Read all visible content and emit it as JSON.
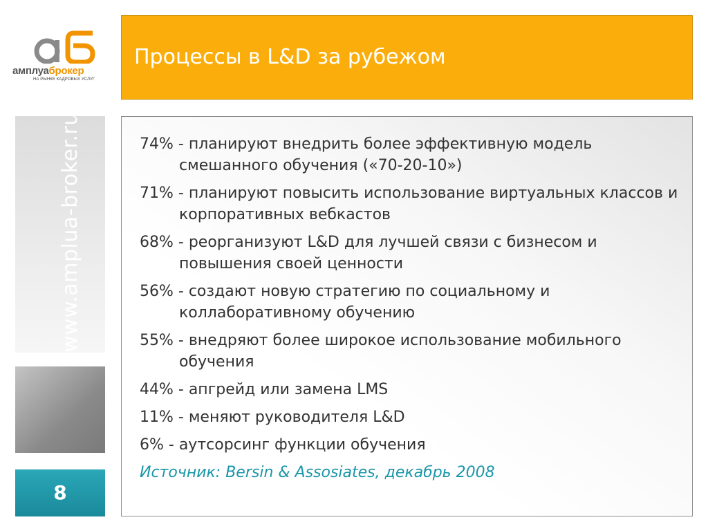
{
  "logo": {
    "mark_text": "аб",
    "name_part1": "амплуа",
    "name_part2": "брокер",
    "tagline": "НА РЫНКЕ КАДРОВЫХ УСЛУГ"
  },
  "header": {
    "title": "Процессы в L&D за рубежом"
  },
  "sidebar": {
    "url": "www.amplua-broker.ru"
  },
  "page": {
    "number": "8"
  },
  "content": {
    "items": [
      "74% - планируют внедрить более эффективную модель смешанного обучения («70-20-10»)",
      "71% - планируют повысить использование виртуальных классов и корпоративных вебкастов",
      "68% - реорганизуют L&D для лучшей связи с бизнесом и повышения своей ценности",
      "56% - создают новую стратегию по социальному и коллаборативному обучению",
      "55% - внедряют более широкое использование мобильного обучения",
      "44% - апгрейд или замена LMS",
      "11% - меняют руководителя L&D",
      "6% - аутсорсинг функции обучения"
    ],
    "source": "Источник: Bersin & Assosiates, декабрь 2008"
  },
  "colors": {
    "accent_orange": "#fbae0b",
    "accent_teal": "#1a96a8",
    "text": "#333333"
  }
}
